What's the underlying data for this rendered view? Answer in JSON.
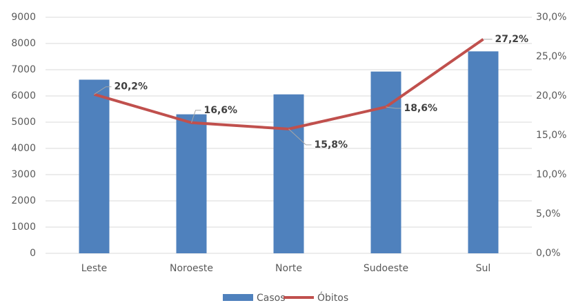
{
  "chart_data": {
    "type": "bar",
    "categories": [
      "Leste",
      "Noroeste",
      "Norte",
      "Sudoeste",
      "Sul"
    ],
    "series": [
      {
        "name": "Casos",
        "type": "bar",
        "color": "#4f81bd",
        "values": [
          6620,
          5300,
          6060,
          6930,
          7700
        ]
      },
      {
        "name": "Óbitos",
        "type": "line",
        "axis": "y2",
        "color": "#c0504d",
        "values": [
          20.2,
          16.6,
          15.8,
          18.6,
          27.2
        ],
        "value_labels": [
          "20,2%",
          "16,6%",
          "15,8%",
          "18,6%",
          "27,2%"
        ]
      }
    ],
    "ylim": [
      0,
      9000
    ],
    "yticks": [
      0,
      1000,
      2000,
      3000,
      4000,
      5000,
      6000,
      7000,
      8000,
      9000
    ],
    "y2lim": [
      0,
      30
    ],
    "y2ticks": [
      {
        "value": 0,
        "label": "0,0%"
      },
      {
        "value": 5,
        "label": "5,0%"
      },
      {
        "value": 10,
        "label": "10,0%"
      },
      {
        "value": 15,
        "label": "15,0%"
      },
      {
        "value": 20,
        "label": "20,0%"
      },
      {
        "value": 25,
        "label": "25,0%"
      },
      {
        "value": 30,
        "label": "30,0%"
      }
    ],
    "grid": true,
    "legend": "bottom"
  }
}
